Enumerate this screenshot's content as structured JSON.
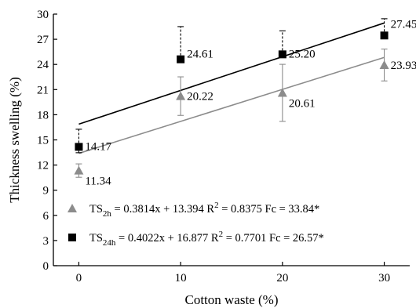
{
  "chart_data": {
    "type": "scatter",
    "xlabel": "Cotton waste (%)",
    "ylabel": "Thickness swelling (%)",
    "x": [
      0,
      10,
      20,
      30
    ],
    "xlim": [
      -2.5,
      32.5
    ],
    "ylim": [
      0,
      30
    ],
    "xticks": [
      "0",
      "10",
      "20",
      "30"
    ],
    "yticks": [
      "0",
      "3",
      "6",
      "9",
      "12",
      "15",
      "18",
      "21",
      "24",
      "27",
      "30"
    ],
    "grid": false,
    "legend_position": "bottom-left",
    "series": [
      {
        "key": "ts2h",
        "marker": "triangle",
        "color": "#8c8c8c",
        "line_color": "#8c8c8c",
        "values": [
          11.34,
          20.22,
          20.61,
          23.93
        ],
        "labels": [
          "11.34",
          "20.22",
          "20.61",
          "23.93"
        ],
        "error_minus": [
          0.8,
          2.3,
          3.4,
          1.9
        ],
        "error_plus": [
          0.8,
          2.3,
          3.4,
          1.9
        ],
        "error_style": "solid",
        "fit": {
          "slope": 0.3814,
          "intercept": 13.394
        },
        "legend": {
          "prefix": "TS",
          "subscript": "2h",
          "equation": " = 0.3814x + 13.394  R",
          "sup": "2",
          "rest": " = 0.8375  Fc = 33.84*"
        }
      },
      {
        "key": "ts24h",
        "marker": "square",
        "color": "#000000",
        "line_color": "#000000",
        "values": [
          14.17,
          24.61,
          25.2,
          27.45
        ],
        "labels": [
          "14.17",
          "24.61",
          "25.20",
          "27.45"
        ],
        "error_minus": [
          0.7,
          0.0,
          0.0,
          0.0
        ],
        "error_plus": [
          2.1,
          3.9,
          2.8,
          2.0
        ],
        "error_style": "dashed",
        "fit": {
          "slope": 0.4022,
          "intercept": 16.877
        },
        "legend": {
          "prefix": "TS",
          "subscript": "24h",
          "equation": " = 0.4022x + 16.877  R",
          "sup": "2",
          "rest": " = 0.7701  Fc = 26.57*"
        }
      }
    ]
  }
}
